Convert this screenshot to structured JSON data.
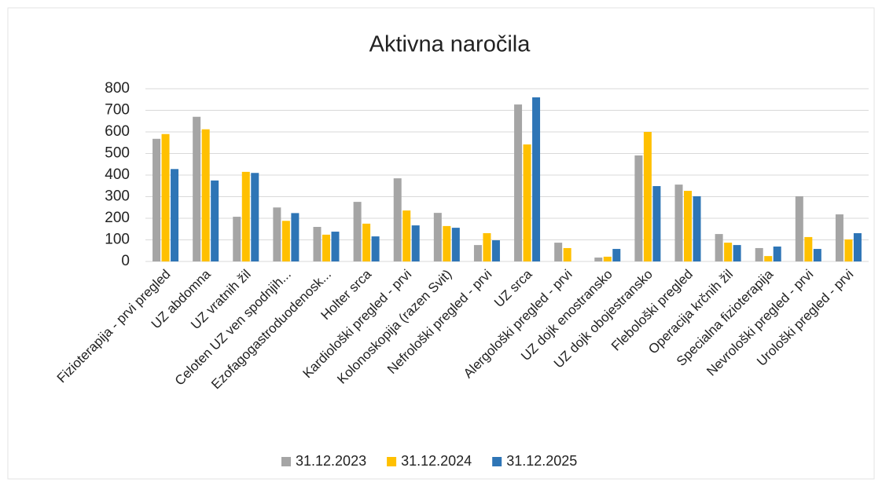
{
  "chart_data": {
    "type": "bar",
    "title": "Aktivna naročila",
    "categories": [
      "Fizioterapija - prvi pregled",
      "UZ abdomna",
      "UZ vratnih žil",
      "Celoten UZ ven spodnjih...",
      "Ezofagogastroduodenosk...",
      "Holter srca",
      "Kardiološki pregled - prvi",
      "Kolonoskopija (razen Svit)",
      "Nefrološki pregled - prvi",
      "UZ srca",
      "Alergološki pregled - prvi",
      "UZ dojk enostransko",
      "UZ dojk obojestransko",
      "Flebološki pregled",
      "Operacija krčnih žil",
      "Specialna fizioterapija",
      "Nevrološki pregled - prvi",
      "Urološki pregled - prvi"
    ],
    "series": [
      {
        "name": "31.12.2023",
        "color": "#a5a5a5",
        "values": [
          568,
          670,
          207,
          250,
          160,
          276,
          385,
          225,
          76,
          727,
          87,
          18,
          491,
          356,
          127,
          62,
          302,
          218
        ]
      },
      {
        "name": "31.12.2024",
        "color": "#ffc000",
        "values": [
          590,
          612,
          415,
          188,
          124,
          175,
          236,
          164,
          131,
          542,
          62,
          22,
          600,
          327,
          87,
          25,
          113,
          102
        ]
      },
      {
        "name": "31.12.2025",
        "color": "#2e75b6",
        "values": [
          428,
          375,
          410,
          224,
          138,
          116,
          167,
          156,
          98,
          760,
          null,
          58,
          349,
          302,
          76,
          69,
          58,
          131
        ]
      }
    ],
    "ylim": [
      0,
      800
    ],
    "yticks": [
      0,
      100,
      200,
      300,
      400,
      500,
      600,
      700,
      800
    ],
    "grid": true,
    "legend": "bottom"
  }
}
